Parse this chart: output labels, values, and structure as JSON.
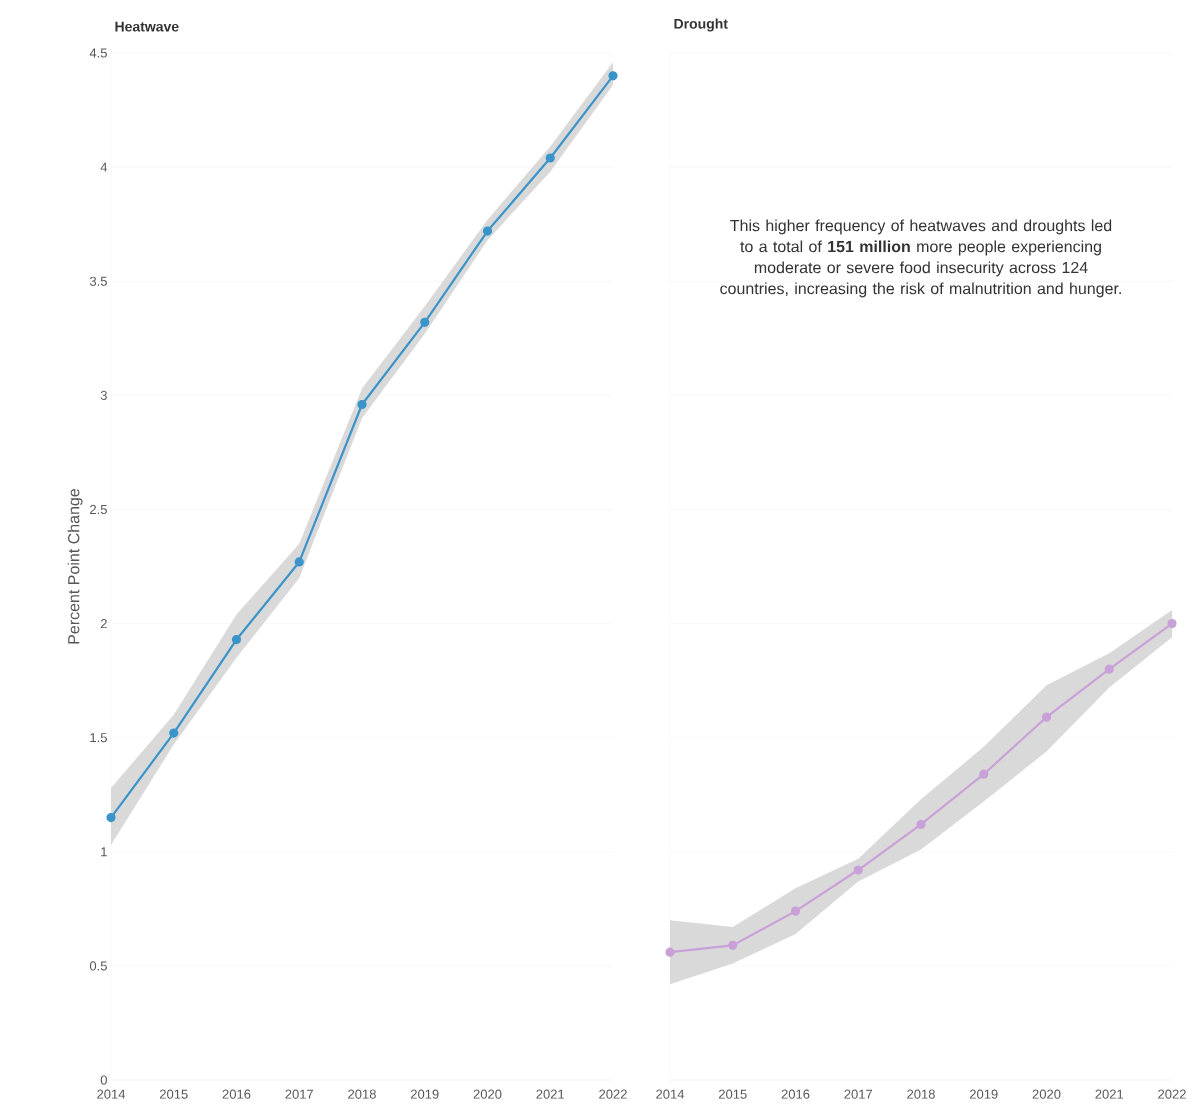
{
  "chart_data": [
    {
      "type": "line",
      "title": "Heatwave",
      "ylabel": "Percent Point Change",
      "x": [
        2014,
        2015,
        2016,
        2017,
        2018,
        2019,
        2020,
        2021,
        2022
      ],
      "xlim": [
        2014,
        2022
      ],
      "xticks": [
        2014,
        2015,
        2016,
        2017,
        2018,
        2019,
        2020,
        2021,
        2022
      ],
      "ylim": [
        0,
        4.5
      ],
      "yticks": [
        0,
        0.5,
        1,
        1.5,
        2,
        2.5,
        3,
        3.5,
        4,
        4.5
      ],
      "grid": "y",
      "marker": "circle",
      "series": [
        {
          "color": "#3a94c9",
          "values": [
            1.15,
            1.52,
            1.93,
            2.27,
            2.96,
            3.32,
            3.72,
            4.04,
            4.4
          ],
          "lower": [
            1.03,
            1.47,
            1.85,
            2.2,
            2.9,
            3.27,
            3.68,
            3.98,
            4.36
          ],
          "upper": [
            1.28,
            1.6,
            2.04,
            2.35,
            3.03,
            3.39,
            3.77,
            4.09,
            4.46
          ]
        }
      ]
    },
    {
      "type": "line",
      "title": "Drought",
      "x": [
        2014,
        2015,
        2016,
        2017,
        2018,
        2019,
        2020,
        2021,
        2022
      ],
      "xlim": [
        2014,
        2022
      ],
      "xticks": [
        2014,
        2015,
        2016,
        2017,
        2018,
        2019,
        2020,
        2021,
        2022
      ],
      "ylim": [
        0,
        4.5
      ],
      "yticks": [
        0,
        0.5,
        1,
        1.5,
        2,
        2.5,
        3,
        3.5,
        4,
        4.5
      ],
      "tick_labels": "x",
      "grid": "y",
      "marker": "circle",
      "series": [
        {
          "color": "#c9a0d8",
          "values": [
            0.56,
            0.59,
            0.74,
            0.92,
            1.12,
            1.34,
            1.59,
            1.8,
            2.0
          ],
          "lower": [
            0.42,
            0.51,
            0.64,
            0.87,
            1.01,
            1.22,
            1.44,
            1.72,
            1.94
          ],
          "upper": [
            0.7,
            0.67,
            0.84,
            0.97,
            1.23,
            1.46,
            1.73,
            1.87,
            2.06
          ]
        }
      ],
      "annotations": [
        "This higher frequency of heatwaves and droughts led to a total of **151 million** more people experiencing moderate or severe food insecurity across 124 countries, increasing the risk of malnutrition and hunger."
      ]
    }
  ]
}
